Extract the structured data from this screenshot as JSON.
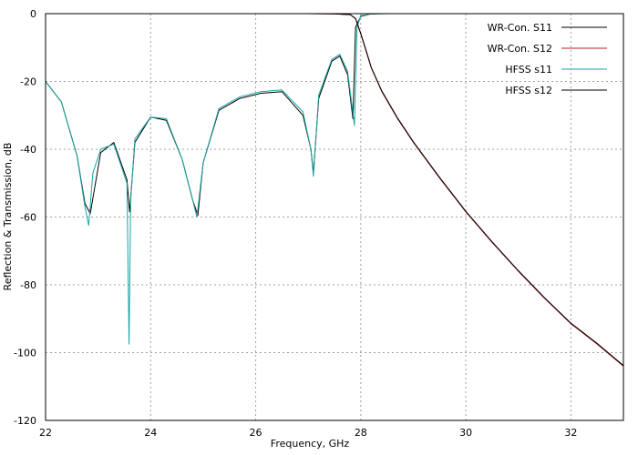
{
  "chart_data": {
    "type": "line",
    "xlabel": "Frequency, GHz",
    "ylabel": "Reflection & Transmission, dB",
    "xlim": [
      22,
      33
    ],
    "ylim": [
      -120,
      0
    ],
    "xticks": [
      22,
      24,
      26,
      28,
      30,
      32
    ],
    "yticks": [
      0,
      -20,
      -40,
      -60,
      -80,
      -100,
      -120
    ],
    "grid": true,
    "legend_position": "top-right",
    "series": [
      {
        "name": "WR-Con. S11",
        "color": "#000000",
        "x": [
          22.0,
          22.3,
          22.6,
          22.75,
          22.85,
          23.05,
          23.3,
          23.55,
          23.6,
          23.7,
          24.0,
          24.3,
          24.6,
          24.8,
          24.9,
          25.0,
          25.3,
          25.7,
          26.1,
          26.5,
          26.9,
          27.05,
          27.1,
          27.2,
          27.45,
          27.6,
          27.75,
          27.85,
          27.9,
          28.0,
          28.2,
          28.5
        ],
        "y": [
          -20,
          -26,
          -42,
          -56,
          -59,
          -41,
          -38,
          -49,
          -58.5,
          -38,
          -30.5,
          -31.5,
          -43,
          -55,
          -59.5,
          -44,
          -28.5,
          -25,
          -23.5,
          -23,
          -30,
          -40,
          -47,
          -25,
          -14,
          -12.5,
          -18,
          -31,
          -4,
          -0.8,
          -0.05,
          0
        ]
      },
      {
        "name": "WR-Con. S12",
        "color": "#b81f1f",
        "x": [
          22.0,
          24.0,
          26.0,
          27.0,
          27.5,
          27.8,
          27.9,
          28.0,
          28.1,
          28.2,
          28.4,
          28.7,
          29.0,
          29.5,
          30.0,
          30.5,
          31.0,
          31.5,
          32.0,
          32.5,
          33.0
        ],
        "y": [
          0,
          0,
          0,
          0,
          -0.05,
          -0.3,
          -1.5,
          -6,
          -11,
          -16,
          -23,
          -31,
          -38,
          -48.5,
          -58.5,
          -67.5,
          -76,
          -84,
          -91.5,
          -97.5,
          -104
        ]
      },
      {
        "name": "HFSS s11",
        "color": "#1aa3a3",
        "x": [
          22.0,
          22.3,
          22.6,
          22.75,
          22.82,
          22.9,
          23.05,
          23.3,
          23.55,
          23.59,
          23.62,
          23.7,
          24.0,
          24.3,
          24.6,
          24.8,
          24.88,
          25.0,
          25.3,
          25.7,
          26.1,
          26.5,
          26.9,
          27.05,
          27.1,
          27.2,
          27.45,
          27.6,
          27.75,
          27.88,
          27.93,
          28.0,
          28.2,
          28.5
        ],
        "y": [
          -20,
          -26,
          -42,
          -57,
          -62.5,
          -47,
          -40,
          -38.5,
          -50,
          -97.5,
          -55,
          -37,
          -30.5,
          -31,
          -43,
          -55,
          -60,
          -44,
          -28,
          -24.5,
          -23,
          -22.5,
          -29,
          -40,
          -48,
          -24,
          -13.5,
          -12,
          -17,
          -33,
          -4,
          -0.6,
          -0.05,
          0
        ]
      },
      {
        "name": "HFSS s12",
        "color": "#000000",
        "x": [
          22.0,
          24.0,
          26.0,
          27.0,
          27.5,
          27.8,
          27.9,
          28.0,
          28.1,
          28.2,
          28.4,
          28.7,
          29.0,
          29.5,
          30.0,
          30.5,
          31.0,
          31.5,
          32.0,
          32.5,
          33.0
        ],
        "y": [
          0,
          0,
          0,
          0,
          -0.05,
          -0.3,
          -1.4,
          -5.8,
          -10.8,
          -15.8,
          -22.8,
          -30.8,
          -37.8,
          -48.3,
          -58.3,
          -67.3,
          -75.8,
          -83.8,
          -91.3,
          -97.3,
          -103.8
        ]
      }
    ]
  }
}
